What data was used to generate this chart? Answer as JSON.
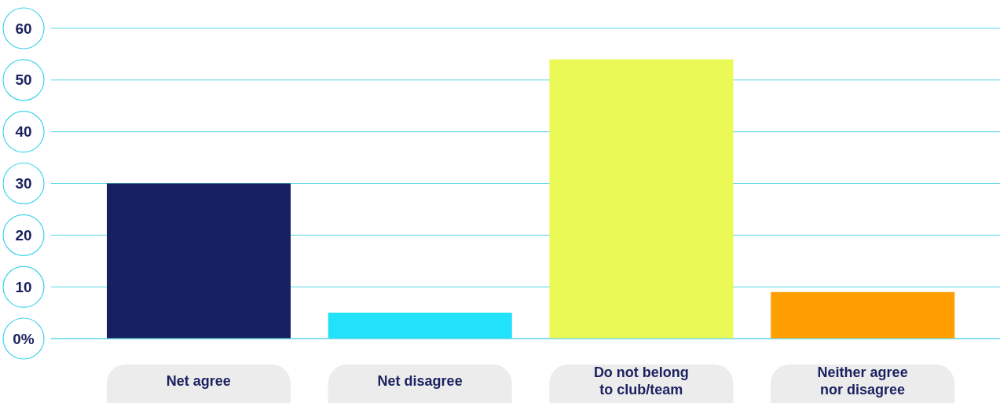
{
  "chart_data": {
    "type": "bar",
    "categories": [
      "Net agree",
      "Net disagree",
      "Do not belong to club/team",
      "Neither agree nor disagree"
    ],
    "values": [
      30,
      5,
      54,
      9
    ],
    "colors": [
      "#172060",
      "#22e1fb",
      "#eaf956",
      "#ff9e00"
    ],
    "ylim": [
      0,
      60
    ],
    "yticks": [
      {
        "value": 0,
        "label": "0%"
      },
      10,
      20,
      30,
      40,
      50,
      60
    ],
    "grid": "y"
  }
}
